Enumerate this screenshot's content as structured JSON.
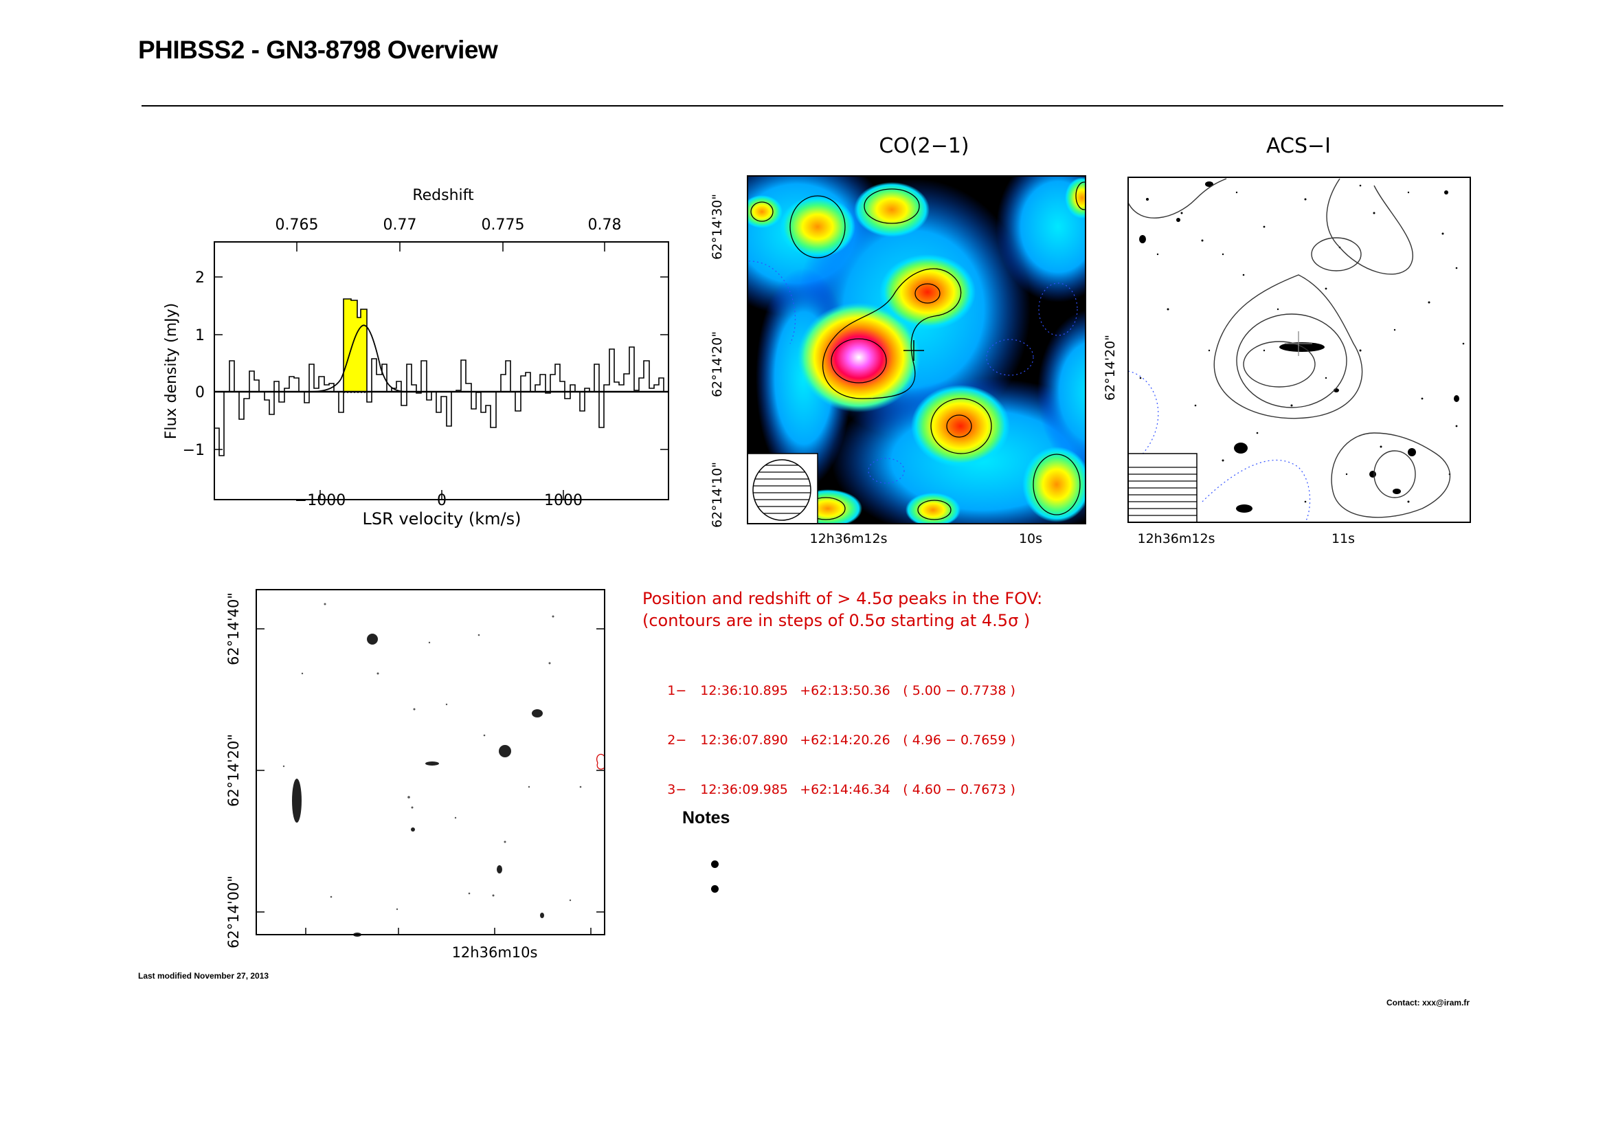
{
  "header": {
    "title": "PHIBSS2 - GN3-8798 Overview"
  },
  "spectrum": {
    "top_axis_title": "Redshift",
    "top_ticks": [
      "0.765",
      "0.77",
      "0.775",
      "0.78"
    ],
    "bottom_ticks": [
      "−1000",
      "0",
      "1000"
    ],
    "left_ticks": [
      "2",
      "1",
      "0",
      "−1"
    ],
    "xlabel": "LSR velocity (km/s)",
    "ylabel": "Flux density (mJy)",
    "highlight_color": "#ffff00"
  },
  "co_map": {
    "title": "CO(2−1)",
    "y_ticks": [
      "62°14'30\"",
      "62°14'20\"",
      "62°14'10\""
    ],
    "x_ticks": [
      "12h36m12s",
      "10s"
    ]
  },
  "acs_map": {
    "title": "ACS−I",
    "y_ticks": [
      "62°14'20\""
    ],
    "x_ticks": [
      "12h36m12s",
      "11s"
    ]
  },
  "field_map": {
    "y_ticks": [
      "62°14'40\"",
      "62°14'20\"",
      "62°14'00\""
    ],
    "x_ticks": [
      "12h36m10s"
    ]
  },
  "peaks": {
    "header_line1": "Position and redshift of > 4.5σ peaks in the FOV:",
    "header_line2": "(contours are in steps of 0.5σ starting at 4.5σ )",
    "rows": [
      {
        "index": "1−",
        "ra": "12:36:10.895",
        "dec": "+62:13:50.36",
        "value": "( 5.00 − 0.7738 )"
      },
      {
        "index": "2−",
        "ra": "12:36:07.890",
        "dec": "+62:14:20.26",
        "value": "( 4.96 − 0.7659 )"
      },
      {
        "index": "3−",
        "ra": "12:36:09.985",
        "dec": "+62:14:46.34",
        "value": "( 4.60 − 0.7673 )"
      }
    ],
    "color": "#d40000"
  },
  "notes": {
    "title": "Notes"
  },
  "footer": {
    "last_modified": "Last modified November 27, 2013",
    "contact": "Contact: xxx@iram.fr"
  }
}
